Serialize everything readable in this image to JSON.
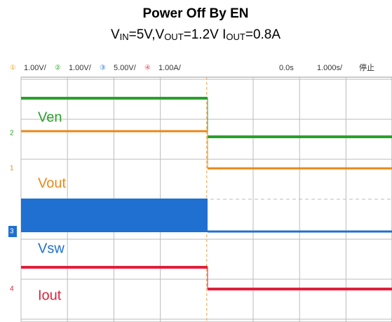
{
  "header": {
    "title": "Power Off By EN",
    "subtitle": [
      {
        "text": "V"
      },
      {
        "text": "IN",
        "sub": true
      },
      {
        "text": "=5V,V"
      },
      {
        "text": "OUT",
        "sub": true
      },
      {
        "text": "=1.2V I"
      },
      {
        "text": "OUT",
        "sub": true
      },
      {
        "text": "=0.8A"
      }
    ]
  },
  "scope": {
    "channels": [
      {
        "marker": "①",
        "scale": "1.00V/",
        "color": "#e8a020"
      },
      {
        "marker": "②",
        "scale": "1.00V/",
        "color": "#2aa02a"
      },
      {
        "marker": "③",
        "scale": "5.00V/",
        "color": "#2a7ad8"
      },
      {
        "marker": "④",
        "scale": "1.00A/",
        "color": "#e0304a"
      }
    ],
    "time_offset": "0.0s",
    "time_scale": "1.000s/",
    "status": "停止"
  },
  "traces": [
    {
      "label": "Ven",
      "color": "#2aa02a"
    },
    {
      "label": "Vout",
      "color": "#e8881a"
    },
    {
      "label": "Vsw",
      "color": "#1f70d0"
    },
    {
      "label": "Iout",
      "color": "#e0203c"
    }
  ],
  "ground_markers": [
    "2",
    "1",
    "3",
    "4"
  ]
}
